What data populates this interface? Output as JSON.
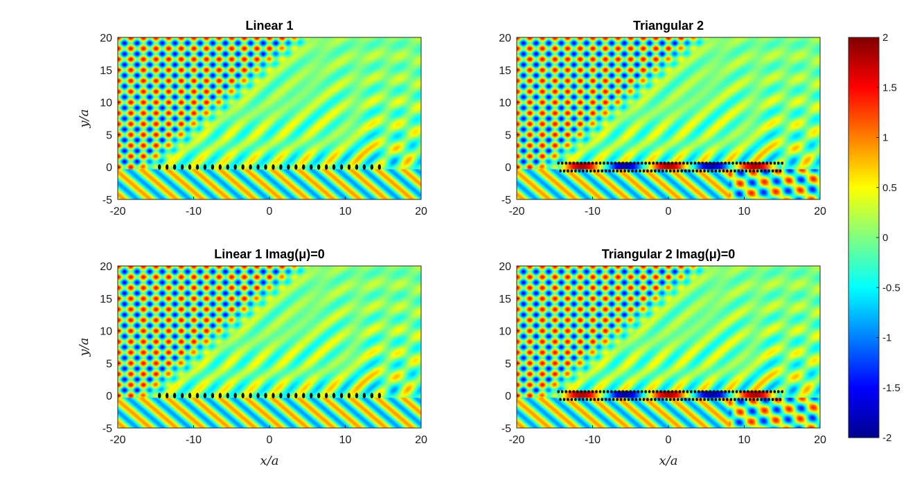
{
  "chart_data": [
    {
      "type": "heatmap",
      "title": "Linear 1",
      "xlabel": "",
      "ylabel": "y/a",
      "xlim": [
        -20,
        20
      ],
      "ylim": [
        -5,
        20
      ],
      "xticks": [
        "-20",
        "-10",
        "0",
        "10",
        "20"
      ],
      "yticks": [
        "20",
        "15",
        "10",
        "5",
        "0",
        "-5"
      ],
      "scatterers": {
        "x_start": -14.5,
        "x_end": 14.5,
        "spacing": 1,
        "y": [
          0
        ]
      },
      "colormap": "jet",
      "clim": [
        -2,
        2
      ]
    },
    {
      "type": "heatmap",
      "title": "Triangular 2",
      "xlabel": "",
      "ylabel": "",
      "xlim": [
        -20,
        20
      ],
      "ylim": [
        -5,
        20
      ],
      "xticks": [
        "-20",
        "-10",
        "0",
        "10",
        "20"
      ],
      "yticks": [
        "20",
        "15",
        "10",
        "5",
        "0",
        "-5"
      ],
      "scatterers": {
        "x_start": -14.5,
        "x_end": 15,
        "spacing": 0.5,
        "y": [
          0.6,
          -0.6
        ]
      },
      "colormap": "jet",
      "clim": [
        -2,
        2
      ]
    },
    {
      "type": "heatmap",
      "title": "Linear 1 Imag(μ)=0",
      "xlabel": "x/a",
      "ylabel": "y/a",
      "xlim": [
        -20,
        20
      ],
      "ylim": [
        -5,
        20
      ],
      "xticks": [
        "-20",
        "-10",
        "0",
        "10",
        "20"
      ],
      "yticks": [
        "20",
        "15",
        "10",
        "5",
        "0",
        "-5"
      ],
      "scatterers": {
        "x_start": -14.5,
        "x_end": 14.5,
        "spacing": 1,
        "y": [
          0
        ]
      },
      "colormap": "jet",
      "clim": [
        -2,
        2
      ]
    },
    {
      "type": "heatmap",
      "title": "Triangular 2 Imag(μ)=0",
      "xlabel": "x/a",
      "ylabel": "",
      "xlim": [
        -20,
        20
      ],
      "ylim": [
        -5,
        20
      ],
      "xticks": [
        "-20",
        "-10",
        "0",
        "10",
        "20"
      ],
      "yticks": [
        "20",
        "15",
        "10",
        "5",
        "0",
        "-5"
      ],
      "scatterers": {
        "x_start": -14.5,
        "x_end": 15,
        "spacing": 0.5,
        "y": [
          0.6,
          -0.6
        ]
      },
      "colormap": "jet",
      "clim": [
        -2,
        2
      ]
    }
  ],
  "colorbar": {
    "ticks": [
      "2",
      "1.5",
      "1",
      "0.5",
      "0",
      "-0.5",
      "-1",
      "-1.5",
      "-2"
    ],
    "values": [
      2,
      1.5,
      1,
      0.5,
      0,
      -0.5,
      -1,
      -1.5,
      -2
    ],
    "colormap": "jet"
  }
}
